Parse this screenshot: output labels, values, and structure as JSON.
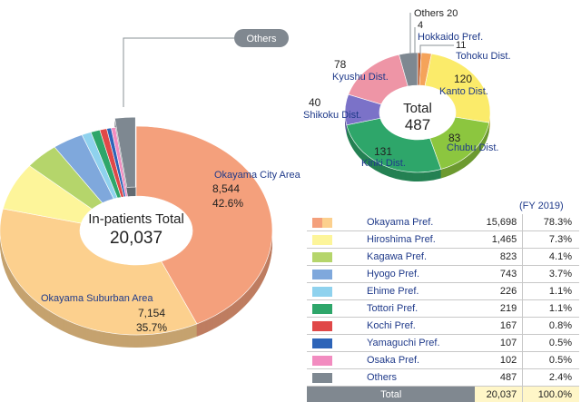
{
  "chart_data": [
    {
      "type": "pie",
      "title": "",
      "center_label": "In-patients Total",
      "center_value": "20,037",
      "slices": [
        {
          "name": "Okayama City Area",
          "value": "8,544",
          "percent": "42.6%",
          "num": 8544,
          "color": "#f4a07c"
        },
        {
          "name": "Okayama Suburban Area",
          "value": "7,154",
          "percent": "35.7%",
          "num": 7154,
          "color": "#fcd08e"
        },
        {
          "name": "",
          "num": 1465,
          "color": "#fdf59a"
        },
        {
          "name": "",
          "num": 823,
          "color": "#b5d56b"
        },
        {
          "name": "",
          "num": 743,
          "color": "#7fa8dc"
        },
        {
          "name": "",
          "num": 226,
          "color": "#8fd2ee"
        },
        {
          "name": "",
          "num": 219,
          "color": "#2ea66a"
        },
        {
          "name": "",
          "num": 167,
          "color": "#e04848"
        },
        {
          "name": "",
          "num": 107,
          "color": "#2d64b8"
        },
        {
          "name": "",
          "num": 102,
          "color": "#f28cc0"
        },
        {
          "name": "Others",
          "num": 487,
          "color": "#7e8891",
          "exploded": true
        }
      ]
    },
    {
      "type": "pie",
      "title": "",
      "center_label": "Total",
      "center_value": "487",
      "slices": [
        {
          "name": "Hokkaido Pref.",
          "value": "4",
          "num": 4,
          "color": "#b85a2e"
        },
        {
          "name": "Tohoku Dist.",
          "value": "11",
          "num": 11,
          "color": "#f5a35a"
        },
        {
          "name": "Kanto Dist.",
          "value": "120",
          "num": 120,
          "color": "#fbeb6a"
        },
        {
          "name": "Chubu Dist.",
          "value": "83",
          "num": 83,
          "color": "#8cc63f"
        },
        {
          "name": "Kinki Dist.",
          "value": "131",
          "num": 131,
          "color": "#2ea66a"
        },
        {
          "name": "Shikoku Dist.",
          "value": "40",
          "num": 40,
          "color": "#7b72c8"
        },
        {
          "name": "Kyushu Dist.",
          "value": "78",
          "num": 78,
          "color": "#ee95a6"
        },
        {
          "name": "Others",
          "value": "20",
          "num": 20,
          "color": "#7e8891"
        }
      ]
    }
  ],
  "table": {
    "fiscal_year": "(FY 2019)",
    "rows": [
      {
        "name": "Okayama Pref.",
        "value": "15,698",
        "percent": "78.3%",
        "colors": [
          "#f4a07c",
          "#fcd08e"
        ]
      },
      {
        "name": "Hiroshima Pref.",
        "value": "1,465",
        "percent": "7.3%",
        "colors": [
          "#fdf59a"
        ]
      },
      {
        "name": "Kagawa Pref.",
        "value": "823",
        "percent": "4.1%",
        "colors": [
          "#b5d56b"
        ]
      },
      {
        "name": "Hyogo Pref.",
        "value": "743",
        "percent": "3.7%",
        "colors": [
          "#7fa8dc"
        ]
      },
      {
        "name": "Ehime Pref.",
        "value": "226",
        "percent": "1.1%",
        "colors": [
          "#8fd2ee"
        ]
      },
      {
        "name": "Tottori Pref.",
        "value": "219",
        "percent": "1.1%",
        "colors": [
          "#2ea66a"
        ]
      },
      {
        "name": "Kochi Pref.",
        "value": "167",
        "percent": "0.8%",
        "colors": [
          "#e04848"
        ]
      },
      {
        "name": "Yamaguchi Pref.",
        "value": "107",
        "percent": "0.5%",
        "colors": [
          "#2d64b8"
        ]
      },
      {
        "name": "Osaka Pref.",
        "value": "102",
        "percent": "0.5%",
        "colors": [
          "#f28cc0"
        ]
      },
      {
        "name": "Others",
        "value": "487",
        "percent": "2.4%",
        "colors": [
          "#7e8891"
        ]
      }
    ],
    "total": {
      "label": "Total",
      "value": "20,037",
      "percent": "100.0%"
    }
  }
}
